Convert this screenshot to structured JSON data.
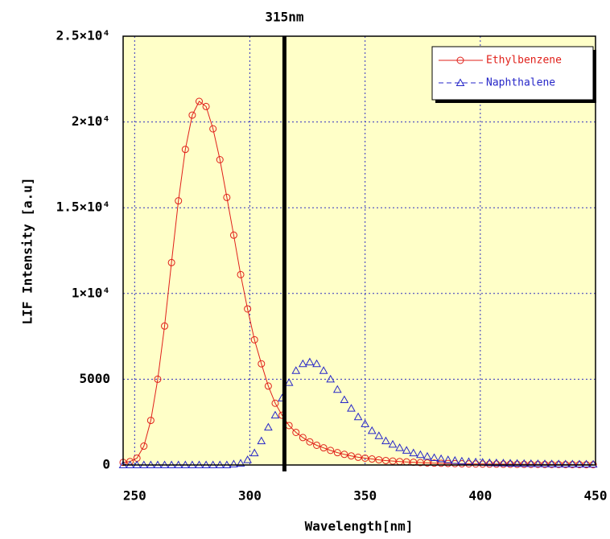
{
  "chart_data": {
    "type": "line",
    "xlabel": "Wavelength[nm]",
    "ylabel": "LIF Intensity [a.u]",
    "annotation": {
      "text": "315nm",
      "x": 315
    },
    "x": [
      245,
      248,
      251,
      254,
      257,
      260,
      263,
      266,
      269,
      272,
      275,
      278,
      281,
      284,
      287,
      290,
      293,
      296,
      299,
      302,
      305,
      308,
      311,
      314,
      317,
      320,
      323,
      326,
      329,
      332,
      335,
      338,
      341,
      344,
      347,
      350,
      353,
      356,
      359,
      362,
      365,
      368,
      371,
      374,
      377,
      380,
      383,
      386,
      389,
      392,
      395,
      398,
      401,
      404,
      407,
      410,
      413,
      416,
      419,
      422,
      425,
      428,
      431,
      434,
      437,
      440,
      443,
      446,
      449
    ],
    "series": [
      {
        "name": "Ethylbenzene",
        "color": "#e0201a",
        "marker": "circle",
        "line": "solid",
        "values": [
          150,
          200,
          400,
          1100,
          2600,
          5000,
          8100,
          11800,
          15400,
          18400,
          20400,
          21200,
          20900,
          19600,
          17800,
          15600,
          13400,
          11100,
          9100,
          7300,
          5900,
          4600,
          3600,
          2900,
          2300,
          1900,
          1600,
          1350,
          1150,
          1000,
          850,
          720,
          620,
          530,
          450,
          400,
          350,
          300,
          260,
          230,
          200,
          180,
          160,
          140,
          120,
          110,
          100,
          90,
          80,
          70,
          65,
          60,
          55,
          50,
          50,
          45,
          45,
          40,
          40,
          35,
          35,
          30,
          30,
          30,
          25,
          25,
          25,
          20,
          20
        ]
      },
      {
        "name": "Naphthalene",
        "color": "#2626c8",
        "marker": "triangle",
        "line": "dashed",
        "values": [
          0,
          0,
          0,
          0,
          0,
          0,
          0,
          0,
          0,
          0,
          0,
          0,
          0,
          0,
          0,
          0,
          50,
          100,
          300,
          700,
          1400,
          2200,
          2900,
          3900,
          4800,
          5500,
          5900,
          6000,
          5900,
          5500,
          5000,
          4400,
          3800,
          3300,
          2800,
          2400,
          2000,
          1700,
          1400,
          1200,
          1000,
          850,
          700,
          600,
          500,
          420,
          360,
          300,
          260,
          220,
          190,
          170,
          150,
          130,
          120,
          110,
          100,
          90,
          80,
          75,
          70,
          65,
          60,
          55,
          50,
          50,
          45,
          45,
          40
        ]
      }
    ],
    "xlim": [
      245,
      450
    ],
    "xticks": [
      250,
      300,
      350,
      400,
      450
    ],
    "ylim": [
      0,
      25000
    ],
    "yticks": [
      0,
      5000,
      {
        "value": 10000,
        "label": "1×10⁴"
      },
      {
        "value": 15000,
        "label": "1.5×10⁴"
      },
      {
        "value": 20000,
        "label": "2×10⁴"
      },
      {
        "value": 25000,
        "label": "2.5×10⁴"
      }
    ],
    "grid": true,
    "legend": "upper right",
    "background": "#ffffc8"
  }
}
